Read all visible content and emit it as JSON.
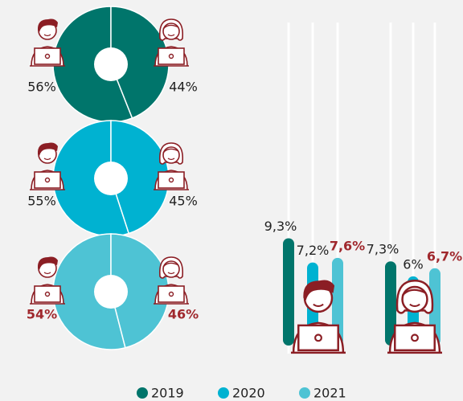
{
  "chart_data": [
    {
      "type": "pie",
      "values": [
        56,
        44
      ],
      "value_labels": [
        "56%",
        "44%"
      ],
      "color": "#00756b"
    },
    {
      "type": "pie",
      "values": [
        55,
        45
      ],
      "value_labels": [
        "55%",
        "45%"
      ],
      "color": "#00b2d1"
    },
    {
      "type": "pie",
      "values": [
        54,
        46
      ],
      "value_labels": [
        "54%",
        "46%"
      ],
      "color": "#4ec3d4"
    },
    {
      "type": "bar",
      "categories": [
        null,
        null
      ],
      "ylim": [
        0,
        28
      ],
      "series": [
        {
          "name": "2019",
          "color": "#00756b",
          "values": [
            9.3,
            7.3
          ],
          "value_labels": [
            "9,3%",
            "7,3%"
          ]
        },
        {
          "name": "2020",
          "color": "#00b2d1",
          "values": [
            7.2,
            6
          ],
          "value_labels": [
            "7,2%",
            "6%"
          ]
        },
        {
          "name": "2021",
          "color": "#4ec3d4",
          "values": [
            7.6,
            6.7
          ],
          "value_labels": [
            "7,6%",
            "6,7%"
          ]
        }
      ]
    }
  ]
}
